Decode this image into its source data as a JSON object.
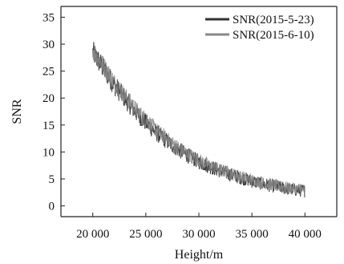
{
  "chart_data": {
    "type": "line",
    "xlabel": "Height/m",
    "ylabel": "SNR",
    "xlim": [
      17000,
      43000
    ],
    "ylim": [
      -2,
      37
    ],
    "xticks": [
      20000,
      25000,
      30000,
      35000,
      40000
    ],
    "xtick_labels": [
      "20 000",
      "25 000",
      "30 000",
      "35 000",
      "40 000"
    ],
    "yticks": [
      0,
      5,
      10,
      15,
      20,
      25,
      30,
      35
    ],
    "ytick_labels": [
      "0",
      "5",
      "10",
      "15",
      "20",
      "25",
      "30",
      "35"
    ],
    "grid": false,
    "legend_position": "top-right",
    "series": [
      {
        "name": "SNR(2015-5-23)",
        "color": "#333333",
        "x": [
          20000,
          21000,
          22000,
          23000,
          24000,
          25000,
          26000,
          27000,
          28000,
          29000,
          30000,
          31000,
          32000,
          33000,
          34000,
          35000,
          36000,
          37000,
          38000,
          39000,
          40000
        ],
        "values": [
          28.5,
          25.5,
          22.5,
          20,
          17.5,
          15.5,
          13.5,
          12,
          10.5,
          9.3,
          8.2,
          7.3,
          6.5,
          5.8,
          5.2,
          4.6,
          4.1,
          3.7,
          3.3,
          3.0,
          2.8
        ],
        "noise": 2.2
      },
      {
        "name": "SNR(2015-6-10)",
        "color": "#888888",
        "x": [
          20000,
          21000,
          22000,
          23000,
          24000,
          25000,
          26000,
          27000,
          28000,
          29000,
          30000,
          31000,
          32000,
          33000,
          34000,
          35000,
          36000,
          37000,
          38000,
          39000,
          40000
        ],
        "values": [
          29,
          26,
          23,
          20.5,
          18,
          16,
          14,
          12.4,
          10.9,
          9.6,
          8.5,
          7.5,
          6.7,
          6.0,
          5.4,
          4.8,
          4.3,
          3.9,
          3.5,
          3.2,
          3.0
        ],
        "noise": 2.0
      }
    ]
  }
}
